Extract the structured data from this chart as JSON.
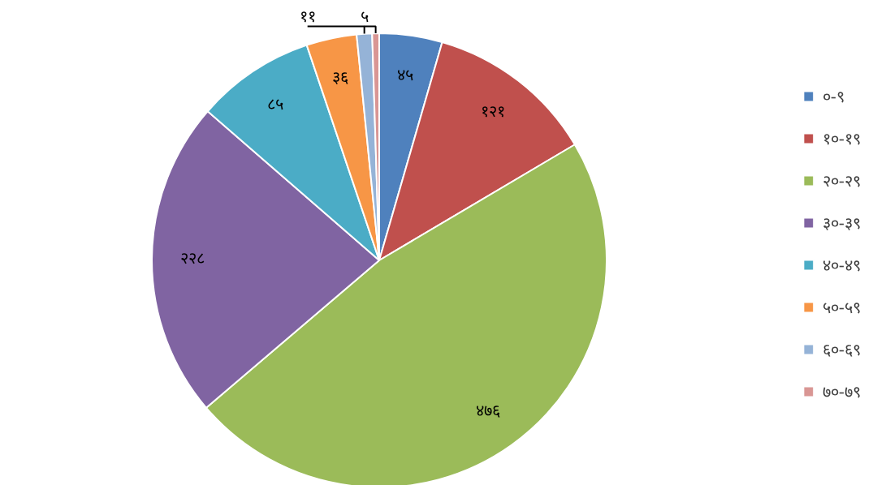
{
  "chart_data": {
    "type": "pie",
    "categories": [
      "०-९",
      "१०-१९",
      "२०-२९",
      "३०-३९",
      "४०-४९",
      "५०-५९",
      "६०-६९",
      "७०-७९"
    ],
    "values": [
      45,
      121,
      476,
      228,
      85,
      36,
      11,
      5
    ],
    "value_labels": [
      "४५",
      "१२१",
      "४७६",
      "२२८",
      "८५",
      "३६",
      "११",
      "५"
    ],
    "colors": [
      "#4f81bd",
      "#c0504d",
      "#9bbb59",
      "#8064a2",
      "#4bacc6",
      "#f79646",
      "#95b3d7",
      "#d99694"
    ],
    "legend": "right"
  }
}
